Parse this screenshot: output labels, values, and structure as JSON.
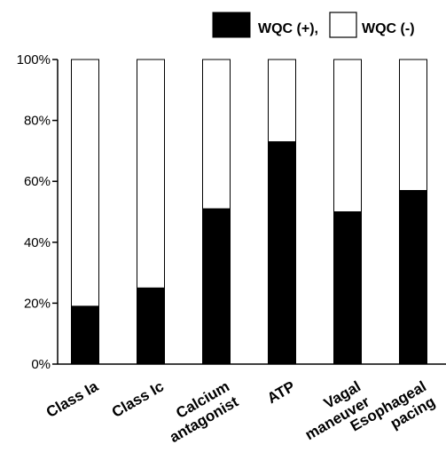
{
  "chart_data": {
    "type": "bar",
    "stacked": true,
    "percent_stacked": true,
    "categories": [
      [
        "Class Ia"
      ],
      [
        "Class Ic"
      ],
      [
        "Calcium",
        "antagonist"
      ],
      [
        "ATP"
      ],
      [
        "Vagal",
        "maneuver"
      ],
      [
        "Esophageal",
        "pacing"
      ]
    ],
    "series": [
      {
        "name": "WQC (+),",
        "color": "#000000",
        "values": [
          19,
          25,
          51,
          73,
          50,
          57
        ]
      },
      {
        "name": "WQC (-)",
        "color": "#ffffff",
        "values": [
          81,
          75,
          49,
          27,
          50,
          43
        ]
      }
    ],
    "y_ticks": [
      "0%",
      "20%",
      "40%",
      "60%",
      "80%",
      "100%"
    ],
    "ylim": [
      0,
      100
    ],
    "legend_position": "top-right",
    "grid": false
  }
}
